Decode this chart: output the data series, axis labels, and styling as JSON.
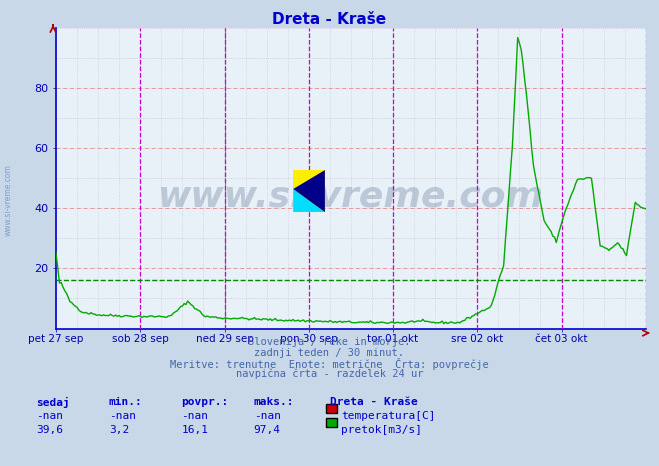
{
  "title": "Dreta - Kraše",
  "title_color": "#0000cc",
  "bg_color": "#c8d8e8",
  "plot_bg_color": "#e8f0f8",
  "xlim": [
    0,
    336
  ],
  "ylim": [
    0,
    100
  ],
  "yticks": [
    20,
    40,
    60,
    80
  ],
  "x_day_labels": [
    "pet 27 sep",
    "sob 28 sep",
    "ned 29 sep",
    "pon 30 sep",
    "tor 01 okt",
    "sre 02 okt",
    "čet 03 okt"
  ],
  "x_day_positions": [
    0,
    48,
    96,
    144,
    192,
    240,
    288
  ],
  "magenta_vlines": [
    48,
    96,
    144,
    192,
    240,
    288,
    336
  ],
  "gray_vline": 96,
  "avg_hline": 16.1,
  "avg_hline_color": "#008800",
  "flow_line_color": "#00aa00",
  "temp_line_color": "#cc0000",
  "watermark_text": "www.si-vreme.com",
  "watermark_color": "#1a3a6a",
  "watermark_alpha": 0.22,
  "sidebar_text": "www.si-vreme.com",
  "subtitle_lines": [
    "Slovenija / reke in morje.",
    "zadnji teden / 30 minut.",
    "Meritve: trenutne  Enote: metrične  Črta: povprečje",
    "navpična črta - razdelek 24 ur"
  ],
  "legend_title": "Dreta - Kraše",
  "legend_items": [
    {
      "label": "temperatura[C]",
      "color": "#cc0000"
    },
    {
      "label": "pretok[m3/s]",
      "color": "#00aa00"
    }
  ],
  "table_headers": [
    "sedaj",
    "min.:",
    "povpr.:",
    "maks.:"
  ],
  "table_temp": [
    "-nan",
    "-nan",
    "-nan",
    "-nan"
  ],
  "table_flow": [
    "39,6",
    "3,2",
    "16,1",
    "97,4"
  ],
  "table_color": "#0000cc"
}
